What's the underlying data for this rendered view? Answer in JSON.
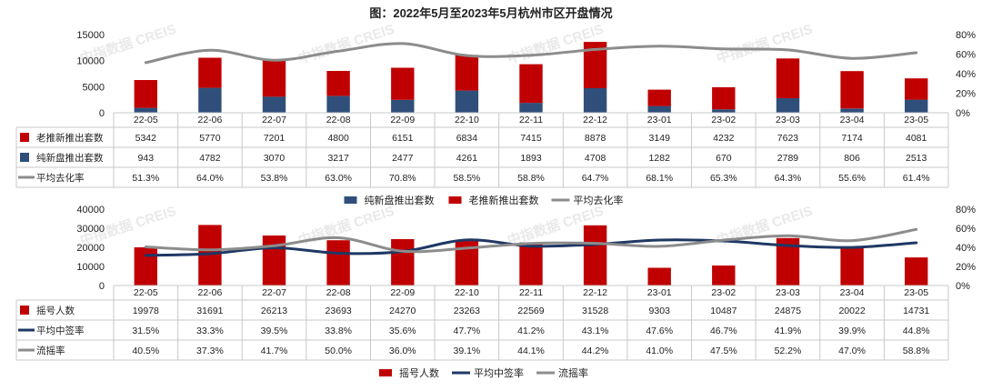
{
  "title": "图：2022年5月至2023年5月杭州市区开盘情况",
  "watermark": "中指数据 CREIS",
  "colors": {
    "red": "#c00000",
    "blue": "#2f4f7a",
    "navy": "#1f3864",
    "gray": "#8c8c8c",
    "grid": "#e3e3e3",
    "table": "#c9c9c9"
  },
  "chart_data": [
    {
      "type": "bar",
      "stacked": true,
      "categories": [
        "22-05",
        "22-06",
        "22-07",
        "22-08",
        "22-09",
        "22-10",
        "22-11",
        "22-12",
        "23-01",
        "23-02",
        "23-03",
        "23-04",
        "23-05"
      ],
      "series": [
        {
          "name": "老推新推出套数",
          "kind": "bar",
          "color": "#c00000",
          "values": [
            5342,
            5770,
            7201,
            4800,
            6151,
            6834,
            7415,
            8878,
            3149,
            4232,
            7623,
            7174,
            4081
          ]
        },
        {
          "name": "纯新盘推出套数",
          "kind": "bar",
          "color": "#2f4f7a",
          "values": [
            943,
            4782,
            3070,
            3217,
            2477,
            4261,
            1893,
            4708,
            1282,
            670,
            2789,
            806,
            2513
          ]
        },
        {
          "name": "平均去化率",
          "kind": "line",
          "axis": "right",
          "color": "#8c8c8c",
          "values": [
            51.3,
            64.0,
            53.8,
            63.0,
            70.8,
            58.5,
            58.8,
            64.7,
            68.1,
            65.3,
            64.3,
            55.6,
            61.4
          ],
          "labels": [
            "51.3%",
            "64.0%",
            "53.8%",
            "63.0%",
            "70.8%",
            "58.5%",
            "58.8%",
            "64.7%",
            "68.1%",
            "65.3%",
            "64.3%",
            "55.6%",
            "61.4%"
          ]
        }
      ],
      "table_rows": [
        {
          "label": "老推新推出套数",
          "series": 0
        },
        {
          "label": "纯新盘推出套数",
          "series": 1
        },
        {
          "label": "平均去化率",
          "series": 2
        }
      ],
      "ylim": [
        0,
        15000
      ],
      "yticks": [
        0,
        5000,
        10000,
        15000
      ],
      "yticks_labels": [
        "0",
        "5000",
        "10000",
        "15000"
      ],
      "y2lim": [
        0,
        80
      ],
      "y2ticks_labels": [
        "0%",
        "20%",
        "40%",
        "60%",
        "80%"
      ],
      "legend": [
        "纯新盘推出套数",
        "老推新推出套数",
        "平均去化率"
      ],
      "legend_series": [
        1,
        0,
        2
      ],
      "legend_position": "bottom"
    },
    {
      "type": "bar",
      "categories": [
        "22-05",
        "22-06",
        "22-07",
        "22-08",
        "22-09",
        "22-10",
        "22-11",
        "22-12",
        "23-01",
        "23-02",
        "23-03",
        "23-04",
        "23-05"
      ],
      "series": [
        {
          "name": "摇号人数",
          "kind": "bar",
          "color": "#c00000",
          "values": [
            19978,
            31691,
            26213,
            23693,
            24270,
            23263,
            22569,
            31528,
            9303,
            10487,
            24875,
            20022,
            14731
          ]
        },
        {
          "name": "平均中签率",
          "kind": "line",
          "axis": "right",
          "color": "#1f3864",
          "values": [
            31.5,
            33.3,
            39.5,
            33.8,
            35.6,
            47.7,
            41.2,
            43.1,
            47.6,
            46.7,
            41.9,
            39.9,
            44.8
          ],
          "labels": [
            "31.5%",
            "33.3%",
            "39.5%",
            "33.8%",
            "35.6%",
            "47.7%",
            "41.2%",
            "43.1%",
            "47.6%",
            "46.7%",
            "41.9%",
            "39.9%",
            "44.8%"
          ]
        },
        {
          "name": "流摇率",
          "kind": "line",
          "axis": "right",
          "color": "#8c8c8c",
          "values": [
            40.5,
            37.3,
            41.7,
            50.0,
            36.0,
            39.1,
            44.1,
            44.2,
            41.0,
            47.5,
            52.2,
            47.0,
            58.8
          ],
          "labels": [
            "40.5%",
            "37.3%",
            "41.7%",
            "50.0%",
            "36.0%",
            "39.1%",
            "44.1%",
            "44.2%",
            "41.0%",
            "47.5%",
            "52.2%",
            "47.0%",
            "58.8%"
          ]
        }
      ],
      "table_rows": [
        {
          "label": "摇号人数",
          "series": 0
        },
        {
          "label": "平均中签率",
          "series": 1
        },
        {
          "label": "流摇率",
          "series": 2
        }
      ],
      "ylim": [
        0,
        40000
      ],
      "yticks": [
        0,
        10000,
        20000,
        30000,
        40000
      ],
      "yticks_labels": [
        "0",
        "10000",
        "20000",
        "30000",
        "40000"
      ],
      "y2lim": [
        0,
        80
      ],
      "y2ticks_labels": [
        "0%",
        "20%",
        "40%",
        "60%",
        "80%"
      ],
      "legend": [
        "摇号人数",
        "平均中签率",
        "流摇率"
      ],
      "legend_series": [
        0,
        1,
        2
      ],
      "legend_position": "bottom"
    }
  ]
}
